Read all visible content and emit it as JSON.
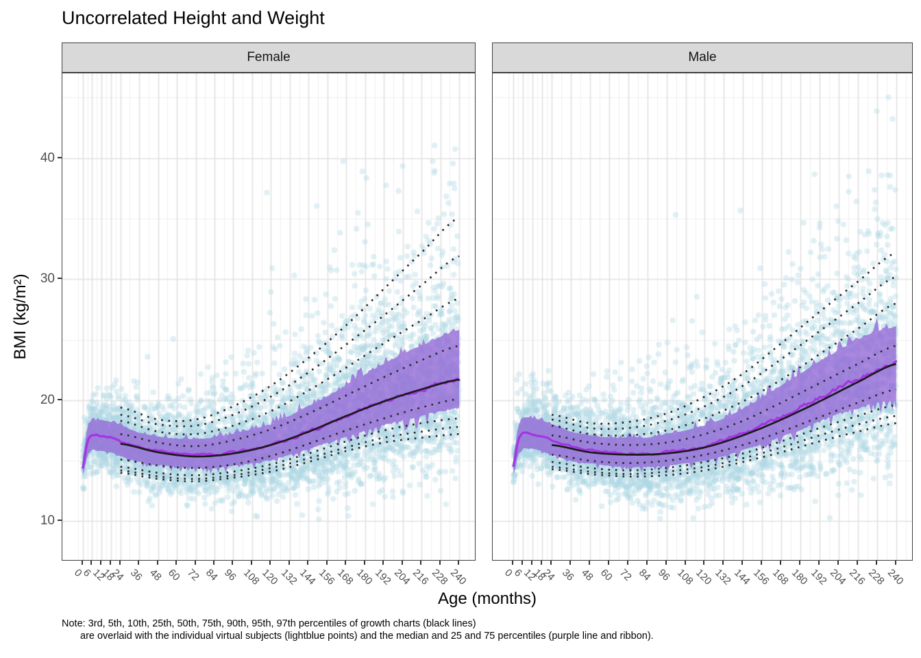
{
  "title": "Uncorrelated Height and Weight",
  "facets": [
    "Female",
    "Male"
  ],
  "x_axis_title": "Age (months)",
  "y_axis_title": "BMI (kg/m²)",
  "note_line1": "Note: 3rd, 5th, 10th, 25th, 50th, 75th, 90th, 95th, 97th percentiles of growth charts (black lines)",
  "note_line2": "are overlaid with the individual virtual subjects (lightblue points) and the median and 25 and 75 percentiles (purple line and ribbon).",
  "colors": {
    "point": "#ADD8E6",
    "ribbon": "#9467D6",
    "median_line": "#A335E0",
    "growth_line": "#1A1A1A",
    "dotted_line": "#2A2A2A",
    "grid_major": "#E2E2E2",
    "grid_minor": "#F0F0F0",
    "panel_border": "#3E3E3E",
    "strip_fill": "#D9D9D9",
    "axis_text": "#4D4D4D",
    "tick": "#333333"
  },
  "chart_data": {
    "type": "scatter",
    "title": "Uncorrelated Height and Weight",
    "xlabel": "Age (months)",
    "ylabel": "BMI (kg/m²)",
    "legend_position": "none",
    "grid": true,
    "xlim": [
      -13,
      250
    ],
    "ylim": [
      6.8,
      47
    ],
    "x_breaks": [
      0,
      6,
      12,
      18,
      24,
      36,
      48,
      60,
      72,
      84,
      96,
      108,
      120,
      132,
      144,
      156,
      168,
      180,
      192,
      204,
      216,
      228,
      240
    ],
    "x_minor": [
      -3,
      3,
      9,
      15,
      21,
      30,
      42,
      54,
      66,
      78,
      90,
      102,
      114,
      126,
      138,
      150,
      162,
      174,
      186,
      198,
      210,
      222,
      234,
      246
    ],
    "y_breaks": [
      10,
      20,
      30,
      40
    ],
    "y_minor": [
      15,
      25,
      35,
      45
    ],
    "percentile_ages": [
      24,
      48,
      72,
      96,
      120,
      144,
      168,
      192,
      216,
      240
    ],
    "dotted_percentiles": [
      "P3",
      "P5",
      "P10",
      "P25",
      "P75",
      "P90",
      "P95",
      "P97"
    ],
    "solid_percentile": "P50",
    "subject_ages": [
      0,
      3,
      6,
      12,
      18,
      24,
      36,
      48,
      60,
      72,
      84,
      96,
      108,
      120,
      132,
      144,
      156,
      168,
      180,
      192,
      204,
      216,
      228,
      240
    ],
    "facets": [
      {
        "name": "Female",
        "growth_percentiles": {
          "P3": [
            14.0,
            13.5,
            13.3,
            13.6,
            14.1,
            14.9,
            15.8,
            16.5,
            16.9,
            17.2
          ],
          "P5": [
            14.2,
            13.7,
            13.5,
            13.8,
            14.4,
            15.2,
            16.1,
            16.9,
            17.4,
            17.8
          ],
          "P10": [
            14.5,
            14.0,
            13.8,
            14.1,
            14.7,
            15.6,
            16.6,
            17.5,
            18.1,
            18.5
          ],
          "P25": [
            15.1,
            14.6,
            14.4,
            14.7,
            15.4,
            16.4,
            17.5,
            18.5,
            19.4,
            20.1
          ],
          "P50": [
            16.4,
            15.7,
            15.35,
            15.6,
            16.3,
            17.4,
            18.7,
            19.9,
            20.9,
            21.7
          ],
          "P75": [
            17.2,
            16.5,
            16.2,
            16.7,
            17.6,
            18.9,
            20.4,
            21.9,
            23.3,
            24.5
          ],
          "P90": [
            18.3,
            17.4,
            17.2,
            17.9,
            19.1,
            20.8,
            22.7,
            24.7,
            26.6,
            28.4
          ],
          "P95": [
            18.8,
            18.0,
            17.9,
            18.8,
            20.3,
            22.3,
            24.6,
            27.0,
            29.5,
            31.9
          ],
          "P97": [
            19.4,
            18.4,
            18.4,
            19.5,
            21.2,
            23.5,
            26.2,
            29.2,
            32.2,
            35.1
          ]
        },
        "subjects": {
          "median": [
            14.5,
            16.6,
            17.15,
            17.0,
            16.9,
            16.6,
            16.1,
            15.8,
            15.6,
            15.5,
            15.5,
            15.7,
            16.0,
            16.3,
            16.8,
            17.4,
            18.0,
            18.7,
            19.3,
            19.9,
            20.4,
            20.9,
            21.4,
            21.8
          ],
          "p75": [
            15.3,
            17.7,
            18.3,
            18.3,
            18.2,
            17.9,
            17.3,
            17.0,
            16.8,
            16.8,
            16.9,
            17.2,
            17.6,
            18.0,
            18.7,
            19.5,
            20.3,
            21.2,
            22.1,
            23.0,
            23.8,
            24.5,
            25.2,
            25.8
          ],
          "p25": [
            13.8,
            15.4,
            15.9,
            15.8,
            15.7,
            15.4,
            14.9,
            14.7,
            14.5,
            14.4,
            14.4,
            14.6,
            14.8,
            15.1,
            15.5,
            16.0,
            16.5,
            17.0,
            17.5,
            18.0,
            18.4,
            18.8,
            19.1,
            19.4
          ]
        }
      },
      {
        "name": "Male",
        "growth_percentiles": {
          "P3": [
            14.3,
            13.9,
            13.7,
            13.8,
            14.2,
            14.9,
            15.7,
            16.6,
            17.4,
            18.1
          ],
          "P5": [
            14.5,
            14.1,
            13.9,
            14.1,
            14.5,
            15.2,
            16.1,
            17.1,
            18.0,
            18.7
          ],
          "P10": [
            14.9,
            14.4,
            14.2,
            14.4,
            14.9,
            15.6,
            16.6,
            17.7,
            18.7,
            19.6
          ],
          "P25": [
            15.5,
            15.0,
            14.8,
            15.0,
            15.5,
            16.3,
            17.4,
            18.6,
            19.8,
            20.9
          ],
          "P50": [
            16.3,
            15.7,
            15.5,
            15.6,
            16.1,
            17.1,
            18.4,
            19.9,
            21.5,
            23.0
          ],
          "P75": [
            17.1,
            16.5,
            16.3,
            16.5,
            17.2,
            18.3,
            19.8,
            21.4,
            23.0,
            24.5
          ],
          "P90": [
            17.9,
            17.2,
            17.1,
            17.5,
            18.5,
            19.9,
            21.7,
            23.8,
            25.9,
            28.0
          ],
          "P95": [
            18.4,
            17.7,
            17.7,
            18.3,
            19.5,
            21.2,
            23.4,
            25.7,
            28.0,
            30.2
          ],
          "P97": [
            18.8,
            18.1,
            18.2,
            18.9,
            20.3,
            22.2,
            24.7,
            27.3,
            29.8,
            32.2
          ]
        },
        "subjects": {
          "median": [
            14.6,
            16.7,
            17.3,
            17.15,
            17.0,
            16.7,
            16.2,
            15.9,
            15.7,
            15.6,
            15.55,
            15.7,
            15.9,
            16.2,
            16.7,
            17.3,
            17.9,
            18.6,
            19.4,
            20.2,
            21.0,
            21.7,
            22.4,
            23.0
          ],
          "p75": [
            15.4,
            17.8,
            18.5,
            18.5,
            18.3,
            18.0,
            17.4,
            17.1,
            16.9,
            16.9,
            16.9,
            17.2,
            17.5,
            17.9,
            18.5,
            19.3,
            20.2,
            21.2,
            22.2,
            23.2,
            24.1,
            25.0,
            25.7,
            26.0
          ],
          "p25": [
            13.9,
            15.5,
            16.0,
            16.0,
            15.8,
            15.5,
            15.0,
            14.8,
            14.6,
            14.5,
            14.5,
            14.6,
            14.8,
            15.0,
            15.4,
            15.9,
            16.4,
            17.0,
            17.6,
            18.3,
            18.9,
            19.4,
            19.8,
            20.0
          ]
        }
      }
    ],
    "points_simulation": {
      "n_per_facet": 5200,
      "age_range": [
        0,
        240
      ],
      "radius": 4.1,
      "alpha": 0.38,
      "seeds": [
        101,
        202
      ],
      "sigma_up_base": 0.085,
      "sigma_up_slope": 0.105,
      "sigma_up_quad": 0.035,
      "sigma_down_base": 0.08,
      "sigma_down_slope": 0.13
    },
    "render_noise": {
      "edge_base": 0.22,
      "edge_slope": 0.75,
      "edge_pow": 1.25,
      "spike_prob": 0.3,
      "line_base": 0.14,
      "line_slope": 0.5,
      "seeds": [
        13,
        29
      ]
    }
  }
}
